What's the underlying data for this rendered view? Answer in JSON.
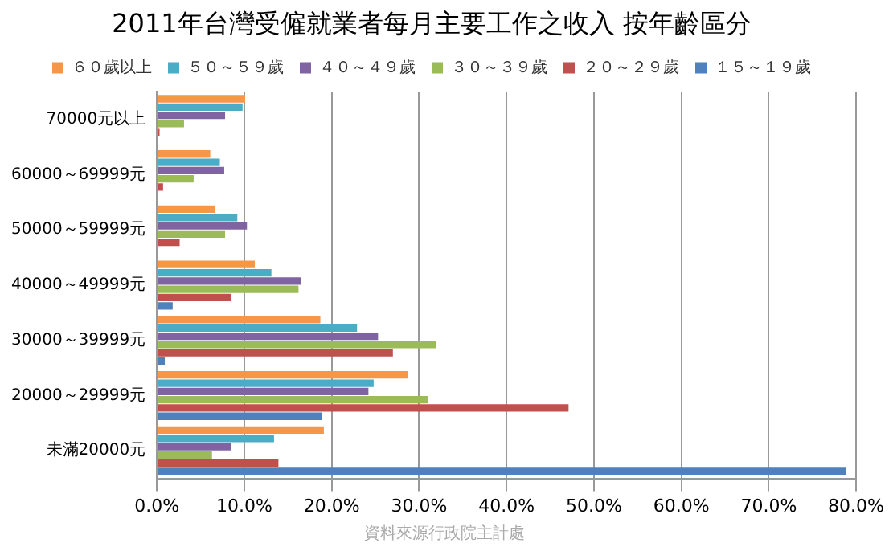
{
  "chart_data": {
    "type": "bar",
    "orientation": "horizontal",
    "title": "2011年台灣受僱就業者每月主要工作之收入 按年齡區分",
    "categories": [
      "70000元以上",
      "60000～69999元",
      "50000～59999元",
      "40000～49999元",
      "30000～39999元",
      "20000～29999元",
      "未滿20000元"
    ],
    "series": [
      {
        "name": "６０歲以上",
        "color": "#f79646",
        "values": [
          10.1,
          6.1,
          6.6,
          11.2,
          18.7,
          28.7,
          19.1
        ]
      },
      {
        "name": "５０～５９歲",
        "color": "#4bacc6",
        "values": [
          9.8,
          7.2,
          9.2,
          13.1,
          22.9,
          24.8,
          13.4
        ]
      },
      {
        "name": "４０～４９歲",
        "color": "#8064a2",
        "values": [
          7.8,
          7.7,
          10.3,
          16.5,
          25.3,
          24.2,
          8.5
        ]
      },
      {
        "name": "３０～３９歲",
        "color": "#9bbb59",
        "values": [
          3.1,
          4.2,
          7.8,
          16.2,
          31.9,
          31.0,
          6.3
        ]
      },
      {
        "name": "２０～２９歲",
        "color": "#c0504d",
        "values": [
          0.3,
          0.7,
          2.6,
          8.5,
          27.0,
          47.1,
          13.9
        ]
      },
      {
        "name": "１５～１９歲",
        "color": "#4f81bd",
        "values": [
          null,
          null,
          null,
          1.8,
          0.9,
          18.9,
          78.8
        ]
      }
    ],
    "xlim": [
      0,
      80
    ],
    "xticks": [
      {
        "value": 0,
        "label": "0.0%"
      },
      {
        "value": 10,
        "label": "10.0%"
      },
      {
        "value": 20,
        "label": "20.0%"
      },
      {
        "value": 30,
        "label": "30.0%"
      },
      {
        "value": 40,
        "label": "40.0%"
      },
      {
        "value": 50,
        "label": "50.0%"
      },
      {
        "value": 60,
        "label": "60.0%"
      },
      {
        "value": 70,
        "label": "70.0%"
      },
      {
        "value": 80,
        "label": "80.0%"
      }
    ],
    "grid": "x",
    "legend": "top",
    "annotations": [
      "資料來源行政院主計處"
    ]
  }
}
